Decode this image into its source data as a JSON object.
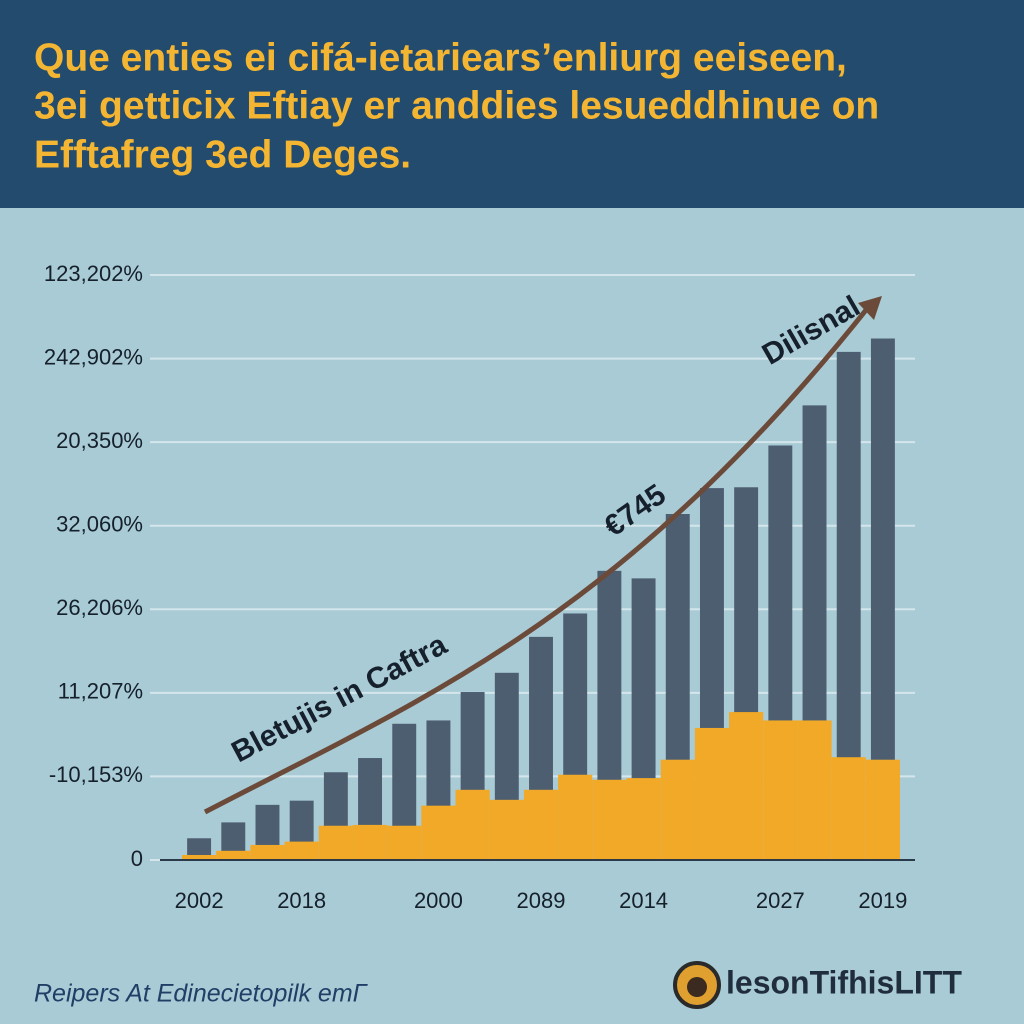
{
  "chart_data": {
    "type": "bar",
    "title_lines": [
      "Que enties ei cifá-ietariears’enliurg eeiseen,",
      "3ei getticix Eftiay er anddies lesueddhinue on",
      "Efftafreg 3ed Deges."
    ],
    "ylabels": [
      "0",
      "-10,153%",
      "11,207%",
      "26,206%",
      "32,060%",
      "20,350%",
      "242,902%",
      "123,202%"
    ],
    "ylim": [
      0,
      7
    ],
    "categories": [
      "2002",
      null,
      null,
      "2018",
      null,
      null,
      null,
      "2000",
      null,
      null,
      "2089",
      null,
      null,
      "2014",
      null,
      null,
      null,
      "2027",
      null,
      null,
      "2019"
    ],
    "series": [
      {
        "color": "#4d5e71",
        "values": [
          0.26,
          0.45,
          0.66,
          0.71,
          1.05,
          1.22,
          1.63,
          1.67,
          2.01,
          2.24,
          2.67,
          2.95,
          3.46,
          3.37,
          4.14,
          4.45,
          4.46,
          4.96,
          5.44,
          6.08,
          6.24
        ]
      },
      {
        "color": "#f2a927",
        "values": [
          0.06,
          0.11,
          0.18,
          0.22,
          0.41,
          0.42,
          0.41,
          0.65,
          0.84,
          0.72,
          0.84,
          1.02,
          0.96,
          0.98,
          1.2,
          1.58,
          1.77,
          1.67,
          1.67,
          1.23,
          1.2
        ]
      }
    ],
    "annotations": [
      "Bletujis in Caftra",
      "€745",
      "Dilisnal"
    ],
    "source": "Reipers At Edinecietopilk eтГ",
    "brand": "lesonTifhisLIТТ"
  }
}
